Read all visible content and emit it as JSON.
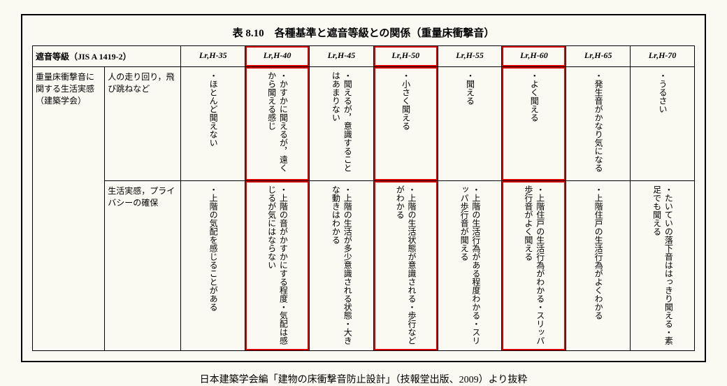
{
  "title": "表 8.10　各種基準と遮音等級との関係（重量床衝撃音）",
  "headers": {
    "rowheader": "遮音等級（JIS A 1419-2）",
    "cols": [
      "Lr,H-35",
      "Lr,H-40",
      "Lr,H-45",
      "Lr,H-50",
      "Lr,H-55",
      "Lr,H-60",
      "Lr,H-65",
      "Lr,H-70"
    ]
  },
  "leftGroup": "重量床衝撃音に関する生活実感（建築学会）",
  "row1Label": "人の走り回り，飛び跳ねなど",
  "row2Label": "生活実感，プライバシーの確保",
  "row1": [
    "・ほとんど聞えない",
    "・かすかに聞えるが，遠くから聞える感じ",
    "・聞えるが，意識することはあまりない",
    "・小さく聞える",
    "・聞える",
    "・よく聞える",
    "・発生音がかなり気になる",
    "・うるさい"
  ],
  "row2": [
    "・上階の気配を感じることがある",
    "・上階の音がかすかにする程度・気配は感じるが気にはならない",
    "・上階の生活が多少意識される状態・大きな動きはわかる",
    "・上階の生活状態が意識される・歩行などがわかる",
    "・上階の生活行為がある程度わかる・スリッパ歩行音が聞える",
    "・上階住戸の生活行為がわかる・スリッパ歩行音がよく聞える",
    "・上階住戸の生活行為がよくわかる",
    "・たいていの落下音ははっきり聞える・素足でも聞える"
  ],
  "highlightCols": [
    1,
    3,
    5
  ],
  "citation": "日本建築学会編「建物の床衝撃音防止設計」（技報堂出版、2009）より抜粋"
}
